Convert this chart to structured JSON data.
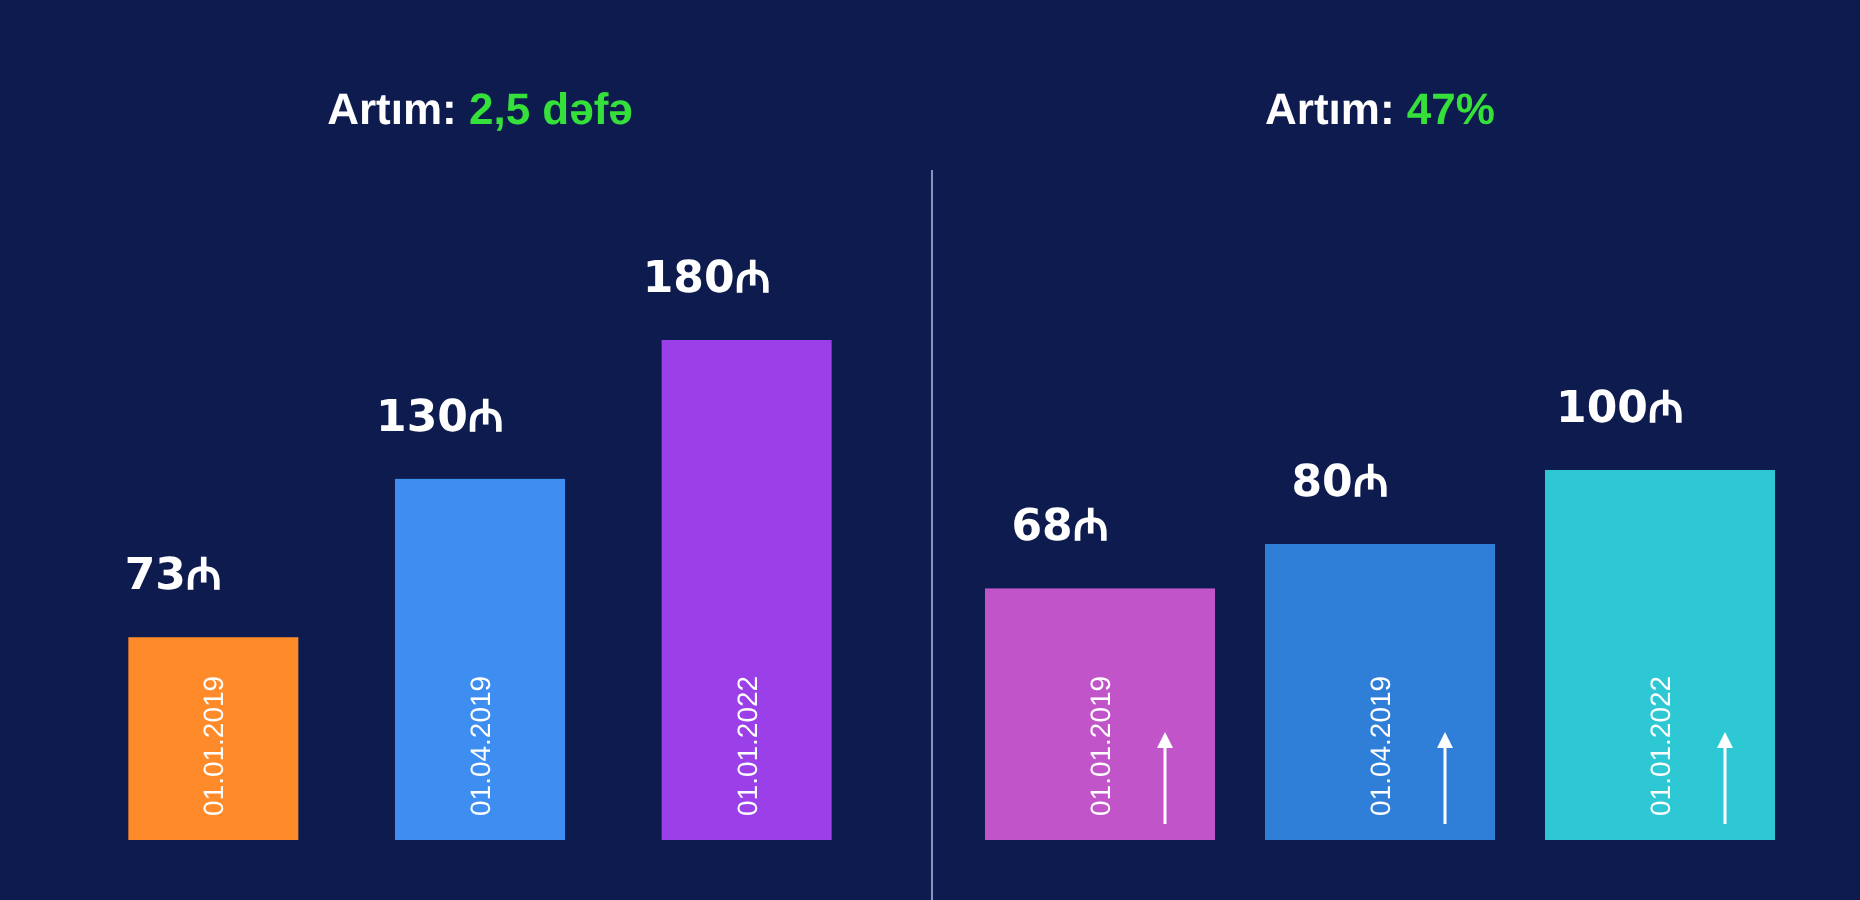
{
  "chart_data": [
    {
      "type": "bar",
      "title": "Artım: 2,5 dəfə",
      "categories": [
        "01.01.2019",
        "01.04.2019",
        "01.01.2022"
      ],
      "values": [
        73,
        130,
        180
      ],
      "colors": [
        "#ff8a2a",
        "#3d8ef0",
        "#9b3fe8"
      ],
      "value_labels": [
        "73₼",
        "130₼",
        "180₼"
      ]
    },
    {
      "type": "bar",
      "title": "Artım: 47%",
      "categories": [
        "01.01.2019",
        "01.04.2019",
        "01.01.2022"
      ],
      "values": [
        68,
        80,
        100
      ],
      "colors": [
        "#c054c8",
        "#2f7fd8",
        "#2ec8d4"
      ],
      "value_labels": [
        "68₼",
        "80₼",
        "100₼"
      ]
    }
  ]
}
